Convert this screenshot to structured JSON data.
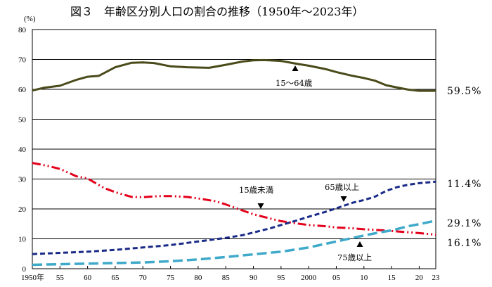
{
  "chart_data": {
    "type": "line",
    "title": "図３　年齢区分別人口の割合の推移（1950年～2023年）",
    "ylabel": "(%)",
    "xlabel": "",
    "ylim": [
      0,
      80
    ],
    "xlim": [
      1950,
      2023
    ],
    "grid": "horizontal",
    "yticks": [
      0,
      10,
      20,
      30,
      40,
      50,
      60,
      70,
      80
    ],
    "xticks": [
      {
        "value": 1950,
        "label": "1950年"
      },
      {
        "value": 1955,
        "label": "55"
      },
      {
        "value": 1960,
        "label": "60"
      },
      {
        "value": 1965,
        "label": "65"
      },
      {
        "value": 1970,
        "label": "70"
      },
      {
        "value": 1975,
        "label": "75"
      },
      {
        "value": 1980,
        "label": "80"
      },
      {
        "value": 1985,
        "label": "85"
      },
      {
        "value": 1990,
        "label": "90"
      },
      {
        "value": 1995,
        "label": "95"
      },
      {
        "value": 2000,
        "label": "2000"
      },
      {
        "value": 2005,
        "label": "05"
      },
      {
        "value": 2010,
        "label": "10"
      },
      {
        "value": 2015,
        "label": "15"
      },
      {
        "value": 2020,
        "label": "20"
      },
      {
        "value": 2023,
        "label": "23"
      }
    ],
    "series": [
      {
        "name": "15～64歳",
        "color": "#4a4a1a",
        "style": "solid",
        "end_label": "59.5%",
        "points": [
          [
            1950,
            59.6
          ],
          [
            1952,
            60.5
          ],
          [
            1955,
            61.2
          ],
          [
            1958,
            63.2
          ],
          [
            1960,
            64.2
          ],
          [
            1962,
            64.5
          ],
          [
            1965,
            67.4
          ],
          [
            1968,
            68.9
          ],
          [
            1970,
            69.0
          ],
          [
            1972,
            68.8
          ],
          [
            1975,
            67.7
          ],
          [
            1978,
            67.4
          ],
          [
            1980,
            67.3
          ],
          [
            1982,
            67.2
          ],
          [
            1985,
            68.2
          ],
          [
            1988,
            69.3
          ],
          [
            1990,
            69.7
          ],
          [
            1992,
            69.8
          ],
          [
            1995,
            69.5
          ],
          [
            1998,
            68.5
          ],
          [
            2000,
            67.9
          ],
          [
            2003,
            66.8
          ],
          [
            2005,
            65.8
          ],
          [
            2008,
            64.5
          ],
          [
            2010,
            63.8
          ],
          [
            2012,
            62.9
          ],
          [
            2014,
            61.4
          ],
          [
            2016,
            60.6
          ],
          [
            2018,
            59.9
          ],
          [
            2020,
            59.5
          ],
          [
            2023,
            59.5
          ]
        ]
      },
      {
        "name": "15歳未満",
        "color": "#e3001b",
        "style": "dashdotdot",
        "end_label": "11.4%",
        "points": [
          [
            1950,
            35.4
          ],
          [
            1953,
            34.3
          ],
          [
            1955,
            33.4
          ],
          [
            1958,
            30.9
          ],
          [
            1960,
            30.2
          ],
          [
            1963,
            27.0
          ],
          [
            1965,
            25.6
          ],
          [
            1968,
            24.0
          ],
          [
            1970,
            23.9
          ],
          [
            1973,
            24.3
          ],
          [
            1975,
            24.3
          ],
          [
            1978,
            24.0
          ],
          [
            1980,
            23.5
          ],
          [
            1983,
            22.6
          ],
          [
            1985,
            21.5
          ],
          [
            1988,
            19.5
          ],
          [
            1990,
            18.2
          ],
          [
            1993,
            16.8
          ],
          [
            1995,
            15.9
          ],
          [
            1998,
            15.1
          ],
          [
            2000,
            14.6
          ],
          [
            2003,
            14.2
          ],
          [
            2005,
            13.8
          ],
          [
            2008,
            13.5
          ],
          [
            2010,
            13.2
          ],
          [
            2013,
            12.9
          ],
          [
            2015,
            12.6
          ],
          [
            2018,
            12.2
          ],
          [
            2020,
            11.9
          ],
          [
            2023,
            11.4
          ]
        ]
      },
      {
        "name": "65歳以上",
        "color": "#1a2a88",
        "style": "dash",
        "end_label": "29.1%",
        "points": [
          [
            1950,
            4.9
          ],
          [
            1955,
            5.3
          ],
          [
            1960,
            5.7
          ],
          [
            1965,
            6.3
          ],
          [
            1970,
            7.1
          ],
          [
            1975,
            7.9
          ],
          [
            1980,
            9.1
          ],
          [
            1985,
            10.3
          ],
          [
            1988,
            11.2
          ],
          [
            1990,
            12.1
          ],
          [
            1993,
            13.5
          ],
          [
            1995,
            14.6
          ],
          [
            1998,
            16.2
          ],
          [
            2000,
            17.4
          ],
          [
            2003,
            19.0
          ],
          [
            2005,
            20.2
          ],
          [
            2008,
            22.1
          ],
          [
            2010,
            23.0
          ],
          [
            2012,
            24.1
          ],
          [
            2014,
            26.0
          ],
          [
            2016,
            27.3
          ],
          [
            2018,
            28.1
          ],
          [
            2020,
            28.6
          ],
          [
            2023,
            29.1
          ]
        ]
      },
      {
        "name": "75歳以上",
        "color": "#3fa9c9",
        "style": "longdash",
        "end_label": "16.1%",
        "points": [
          [
            1950,
            1.3
          ],
          [
            1955,
            1.5
          ],
          [
            1960,
            1.7
          ],
          [
            1965,
            1.9
          ],
          [
            1970,
            2.1
          ],
          [
            1975,
            2.5
          ],
          [
            1980,
            3.1
          ],
          [
            1985,
            3.9
          ],
          [
            1990,
            4.8
          ],
          [
            1995,
            5.7
          ],
          [
            2000,
            7.1
          ],
          [
            2005,
            9.1
          ],
          [
            2010,
            11.1
          ],
          [
            2013,
            12.2
          ],
          [
            2015,
            12.8
          ],
          [
            2018,
            14.2
          ],
          [
            2020,
            14.9
          ],
          [
            2023,
            16.1
          ]
        ]
      }
    ]
  }
}
